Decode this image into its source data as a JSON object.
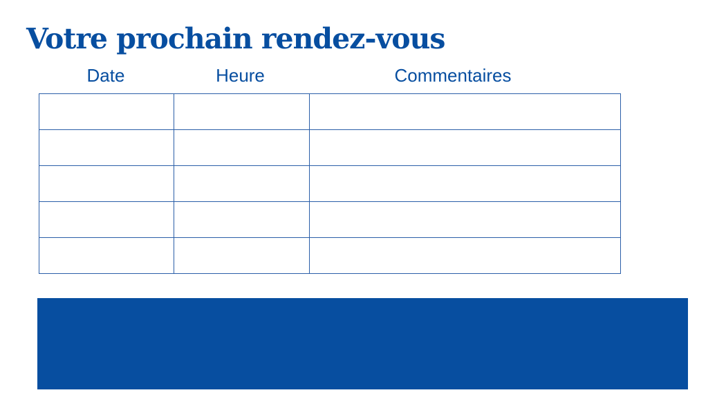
{
  "title": "Votre prochain rendez-vous",
  "columns": [
    "Date",
    "Heure",
    "Commentaires"
  ],
  "row_count": 5,
  "colors": {
    "primary": "#074EA0"
  }
}
